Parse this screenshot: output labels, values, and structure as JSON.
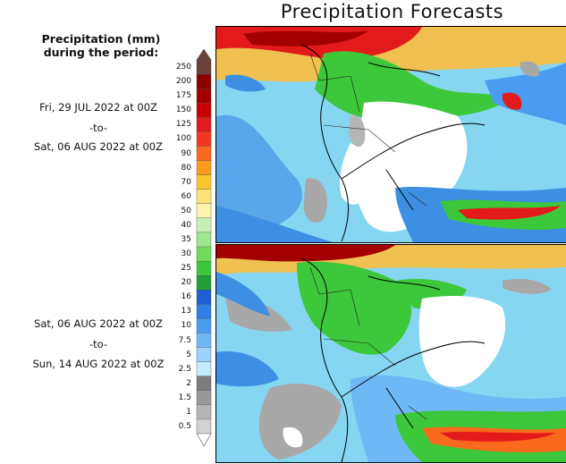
{
  "header": {
    "title": "Precipitation Forecasts"
  },
  "legend": {
    "title": "Precipitation (mm)\nduring the period:",
    "unit": "mm",
    "levels": [
      {
        "label": "250",
        "color": "#6b3f3a"
      },
      {
        "label": "200",
        "color": "#8c0000"
      },
      {
        "label": "175",
        "color": "#a30000"
      },
      {
        "label": "150",
        "color": "#c90000"
      },
      {
        "label": "125",
        "color": "#e31a1a"
      },
      {
        "label": "100",
        "color": "#f5361e"
      },
      {
        "label": "90",
        "color": "#fa6a1e"
      },
      {
        "label": "80",
        "color": "#fb9a1e"
      },
      {
        "label": "70",
        "color": "#fdc62e"
      },
      {
        "label": "60",
        "color": "#fde27a"
      },
      {
        "label": "50",
        "color": "#fff3ac"
      },
      {
        "label": "40",
        "color": "#c8f0b4"
      },
      {
        "label": "35",
        "color": "#9ce88c"
      },
      {
        "label": "30",
        "color": "#6fdc5a"
      },
      {
        "label": "25",
        "color": "#3cc83a"
      },
      {
        "label": "20",
        "color": "#1ea032"
      },
      {
        "label": "16",
        "color": "#1c5fd0"
      },
      {
        "label": "13",
        "color": "#2f7fe6"
      },
      {
        "label": "10",
        "color": "#4a9cf0"
      },
      {
        "label": "7.5",
        "color": "#6fb8f6"
      },
      {
        "label": "5",
        "color": "#9ad4fa"
      },
      {
        "label": "2.5",
        "color": "#c4ecfd"
      },
      {
        "label": "2",
        "color": "#7c7c7c"
      },
      {
        "label": "1.5",
        "color": "#999999"
      },
      {
        "label": "1",
        "color": "#b5b5b5"
      },
      {
        "label": "0.5",
        "color": "#d2d2d2"
      }
    ]
  },
  "periods": [
    {
      "start": "Fri, 29 JUL 2022 at 00Z",
      "separator": "-to-",
      "end": "Sat, 06 AUG 2022 at 00Z"
    },
    {
      "start": "Sat, 06 AUG 2022 at 00Z",
      "separator": "-to-",
      "end": "Sun, 14 AUG 2022 at 00Z"
    }
  ],
  "colors": {
    "ocean_light": "#7ad3f1",
    "ocean_blue": "#3d8fe4",
    "dry": "#ffffff",
    "grey": "#a8a8a8",
    "green": "#3cc83a",
    "red": "#e31a1a"
  }
}
